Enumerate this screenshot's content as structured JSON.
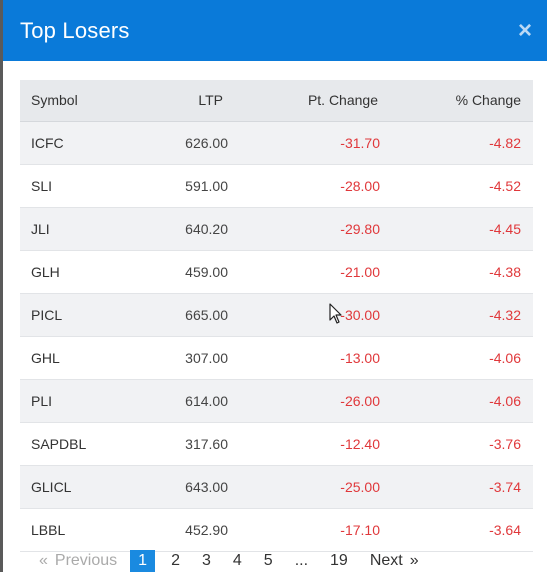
{
  "modal": {
    "title": "Top Losers",
    "close_icon": "×"
  },
  "table": {
    "headers": {
      "symbol": "Symbol",
      "ltp": "LTP",
      "pt_change": "Pt. Change",
      "pct_change": "% Change"
    },
    "rows": [
      {
        "symbol": "ICFC",
        "ltp": "626.00",
        "pt": "-31.70",
        "pct": "-4.82"
      },
      {
        "symbol": "SLI",
        "ltp": "591.00",
        "pt": "-28.00",
        "pct": "-4.52"
      },
      {
        "symbol": "JLI",
        "ltp": "640.20",
        "pt": "-29.80",
        "pct": "-4.45"
      },
      {
        "symbol": "GLH",
        "ltp": "459.00",
        "pt": "-21.00",
        "pct": "-4.38"
      },
      {
        "symbol": "PICL",
        "ltp": "665.00",
        "pt": "-30.00",
        "pct": "-4.32"
      },
      {
        "symbol": "GHL",
        "ltp": "307.00",
        "pt": "-13.00",
        "pct": "-4.06"
      },
      {
        "symbol": "PLI",
        "ltp": "614.00",
        "pt": "-26.00",
        "pct": "-4.06"
      },
      {
        "symbol": "SAPDBL",
        "ltp": "317.60",
        "pt": "-12.40",
        "pct": "-3.76"
      },
      {
        "symbol": "GLICL",
        "ltp": "643.00",
        "pt": "-25.00",
        "pct": "-3.74"
      },
      {
        "symbol": "LBBL",
        "ltp": "452.90",
        "pt": "-17.10",
        "pct": "-3.64"
      }
    ]
  },
  "pagination": {
    "prev_arrow": "«",
    "previous": "Previous",
    "pages": [
      "1",
      "2",
      "3",
      "4",
      "5"
    ],
    "ellipsis": "...",
    "last_page": "19",
    "next": "Next",
    "next_arrow": "»",
    "current": "1"
  },
  "colors": {
    "header_bg": "#0a7ad9",
    "negative": "#e0383b",
    "active_page": "#1a8ae0"
  }
}
